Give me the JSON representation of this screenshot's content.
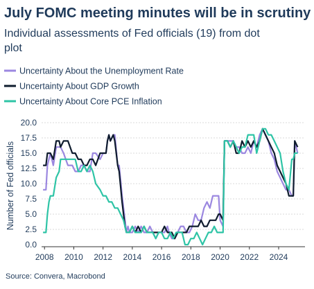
{
  "chart_data": {
    "type": "line",
    "title": "July FOMC meeting minutes will be in scrutiny",
    "subtitle_lines": [
      "Individual assessments of Fed officials (19) from dot",
      "plot"
    ],
    "xlabel": "",
    "ylabel": "Number of Fed officials",
    "source": "Source: Convera, Macrobond",
    "xlim": [
      2007.8,
      2025.8
    ],
    "ylim": [
      0,
      20
    ],
    "x_ticks": [
      2008,
      2010,
      2012,
      2014,
      2016,
      2018,
      2020,
      2022,
      2024
    ],
    "x_tick_labels": [
      "2008",
      "2010",
      "2012",
      "2014",
      "2016",
      "2018",
      "2020",
      "2022",
      "2024"
    ],
    "y_ticks": [
      0,
      2.5,
      5,
      7.5,
      10,
      12.5,
      15,
      17.5,
      20
    ],
    "y_tick_labels": [
      "0.0",
      "2.5",
      "5.0",
      "7.5",
      "10.0",
      "12.5",
      "15.0",
      "17.5",
      "20.0"
    ],
    "grid": true,
    "legend_position": "top-left",
    "series": [
      {
        "name": "Uncertainty About the Unemployment Rate",
        "color": "#9b87e0",
        "points": [
          [
            2007.9,
            9
          ],
          [
            2008.1,
            9
          ],
          [
            2008.2,
            13
          ],
          [
            2008.4,
            15
          ],
          [
            2008.6,
            13
          ],
          [
            2008.8,
            16
          ],
          [
            2009.0,
            16
          ],
          [
            2009.1,
            16
          ],
          [
            2009.3,
            15
          ],
          [
            2009.6,
            13
          ],
          [
            2009.9,
            13
          ],
          [
            2010.1,
            12
          ],
          [
            2010.3,
            12
          ],
          [
            2010.5,
            13
          ],
          [
            2010.7,
            13
          ],
          [
            2010.9,
            12
          ],
          [
            2011.1,
            12
          ],
          [
            2011.3,
            15
          ],
          [
            2011.5,
            15
          ],
          [
            2011.8,
            14
          ],
          [
            2012.0,
            15
          ],
          [
            2012.2,
            15
          ],
          [
            2012.3,
            17
          ],
          [
            2012.4,
            18
          ],
          [
            2012.5,
            17
          ],
          [
            2012.7,
            18
          ],
          [
            2012.8,
            18
          ],
          [
            2013.0,
            13
          ],
          [
            2013.1,
            13
          ],
          [
            2013.3,
            8
          ],
          [
            2013.4,
            6
          ],
          [
            2013.5,
            4
          ],
          [
            2013.6,
            2
          ],
          [
            2013.7,
            3
          ],
          [
            2013.8,
            2
          ],
          [
            2014.0,
            2
          ],
          [
            2014.2,
            3
          ],
          [
            2014.4,
            2
          ],
          [
            2014.6,
            3
          ],
          [
            2014.8,
            2
          ],
          [
            2015.0,
            2
          ],
          [
            2015.2,
            3
          ],
          [
            2015.4,
            2
          ],
          [
            2015.6,
            1
          ],
          [
            2015.8,
            2
          ],
          [
            2016.0,
            2
          ],
          [
            2016.2,
            2
          ],
          [
            2016.4,
            3
          ],
          [
            2016.5,
            2
          ],
          [
            2016.7,
            1
          ],
          [
            2016.9,
            1
          ],
          [
            2017.1,
            2
          ],
          [
            2017.3,
            3
          ],
          [
            2017.5,
            3
          ],
          [
            2017.7,
            2
          ],
          [
            2017.9,
            2
          ],
          [
            2018.1,
            3
          ],
          [
            2018.3,
            5
          ],
          [
            2018.5,
            4
          ],
          [
            2018.7,
            4
          ],
          [
            2018.9,
            6
          ],
          [
            2019.1,
            7
          ],
          [
            2019.3,
            6
          ],
          [
            2019.5,
            8
          ],
          [
            2019.7,
            8
          ],
          [
            2019.9,
            8
          ],
          [
            2020.0,
            4
          ],
          [
            2020.2,
            3
          ],
          [
            2020.3,
            17
          ],
          [
            2020.5,
            17
          ],
          [
            2020.7,
            17
          ],
          [
            2020.9,
            17
          ],
          [
            2021.1,
            16
          ],
          [
            2021.3,
            16
          ],
          [
            2021.5,
            15
          ],
          [
            2021.7,
            15
          ],
          [
            2021.9,
            16
          ],
          [
            2022.1,
            15
          ],
          [
            2022.3,
            17
          ],
          [
            2022.5,
            16
          ],
          [
            2022.7,
            18
          ],
          [
            2022.9,
            19
          ],
          [
            2023.1,
            18
          ],
          [
            2023.3,
            17
          ],
          [
            2023.5,
            15
          ],
          [
            2023.7,
            14
          ],
          [
            2023.9,
            12
          ],
          [
            2024.1,
            11
          ],
          [
            2024.3,
            10
          ],
          [
            2024.5,
            9
          ],
          [
            2024.7,
            9
          ],
          [
            2024.9,
            8
          ],
          [
            2025.0,
            8
          ],
          [
            2025.1,
            17
          ],
          [
            2025.3,
            15
          ]
        ]
      },
      {
        "name": "Uncertainty About GDP Growth",
        "color": "#0f1c2e",
        "points": [
          [
            2007.9,
            13
          ],
          [
            2008.1,
            13
          ],
          [
            2008.2,
            15
          ],
          [
            2008.4,
            15
          ],
          [
            2008.6,
            14
          ],
          [
            2008.8,
            17
          ],
          [
            2009.0,
            17
          ],
          [
            2009.1,
            16
          ],
          [
            2009.3,
            17
          ],
          [
            2009.6,
            17
          ],
          [
            2009.9,
            15
          ],
          [
            2010.1,
            15
          ],
          [
            2010.3,
            14
          ],
          [
            2010.5,
            14
          ],
          [
            2010.7,
            13
          ],
          [
            2010.9,
            13
          ],
          [
            2011.1,
            14
          ],
          [
            2011.3,
            14
          ],
          [
            2011.5,
            13
          ],
          [
            2011.8,
            15
          ],
          [
            2012.0,
            15
          ],
          [
            2012.2,
            15
          ],
          [
            2012.3,
            17
          ],
          [
            2012.4,
            18
          ],
          [
            2012.5,
            17
          ],
          [
            2012.7,
            18
          ],
          [
            2012.8,
            17
          ],
          [
            2013.0,
            13
          ],
          [
            2013.1,
            12
          ],
          [
            2013.3,
            7
          ],
          [
            2013.4,
            5
          ],
          [
            2013.5,
            3
          ],
          [
            2013.6,
            2
          ],
          [
            2013.7,
            2
          ],
          [
            2013.8,
            2
          ],
          [
            2014.0,
            3
          ],
          [
            2014.2,
            2
          ],
          [
            2014.4,
            3
          ],
          [
            2014.6,
            2
          ],
          [
            2014.8,
            3
          ],
          [
            2015.0,
            2
          ],
          [
            2015.2,
            2
          ],
          [
            2015.4,
            2
          ],
          [
            2015.6,
            2
          ],
          [
            2015.8,
            2
          ],
          [
            2016.0,
            2
          ],
          [
            2016.2,
            3
          ],
          [
            2016.4,
            2
          ],
          [
            2016.5,
            2
          ],
          [
            2016.7,
            2
          ],
          [
            2016.9,
            1
          ],
          [
            2017.1,
            2
          ],
          [
            2017.3,
            2
          ],
          [
            2017.5,
            2
          ],
          [
            2017.7,
            2
          ],
          [
            2017.9,
            3
          ],
          [
            2018.1,
            3
          ],
          [
            2018.3,
            3
          ],
          [
            2018.5,
            3
          ],
          [
            2018.7,
            4
          ],
          [
            2018.9,
            3
          ],
          [
            2019.1,
            3
          ],
          [
            2019.3,
            4
          ],
          [
            2019.5,
            4
          ],
          [
            2019.7,
            4
          ],
          [
            2019.9,
            5
          ],
          [
            2020.0,
            5
          ],
          [
            2020.2,
            4
          ],
          [
            2020.3,
            17
          ],
          [
            2020.5,
            17
          ],
          [
            2020.7,
            16
          ],
          [
            2020.9,
            17
          ],
          [
            2021.1,
            15
          ],
          [
            2021.3,
            15
          ],
          [
            2021.5,
            17
          ],
          [
            2021.7,
            16
          ],
          [
            2021.9,
            17
          ],
          [
            2022.1,
            16
          ],
          [
            2022.3,
            17
          ],
          [
            2022.5,
            16
          ],
          [
            2022.7,
            17
          ],
          [
            2022.9,
            19
          ],
          [
            2023.1,
            18
          ],
          [
            2023.3,
            17
          ],
          [
            2023.5,
            16
          ],
          [
            2023.7,
            15
          ],
          [
            2023.9,
            13
          ],
          [
            2024.1,
            12
          ],
          [
            2024.3,
            11
          ],
          [
            2024.5,
            10
          ],
          [
            2024.7,
            8
          ],
          [
            2024.9,
            8
          ],
          [
            2025.0,
            8
          ],
          [
            2025.1,
            17
          ],
          [
            2025.3,
            16
          ]
        ]
      },
      {
        "name": "Uncertainty About Core PCE Inflation",
        "color": "#2ec4a6",
        "points": [
          [
            2007.9,
            2
          ],
          [
            2008.1,
            2
          ],
          [
            2008.2,
            5
          ],
          [
            2008.3,
            7
          ],
          [
            2008.4,
            8
          ],
          [
            2008.6,
            8
          ],
          [
            2008.8,
            11
          ],
          [
            2009.0,
            12
          ],
          [
            2009.1,
            14
          ],
          [
            2009.3,
            14
          ],
          [
            2009.6,
            14
          ],
          [
            2009.9,
            14
          ],
          [
            2010.1,
            14
          ],
          [
            2010.3,
            12
          ],
          [
            2010.5,
            12
          ],
          [
            2010.7,
            13
          ],
          [
            2010.9,
            12
          ],
          [
            2011.1,
            13
          ],
          [
            2011.3,
            12
          ],
          [
            2011.5,
            10
          ],
          [
            2011.8,
            9
          ],
          [
            2012.0,
            8
          ],
          [
            2012.2,
            8
          ],
          [
            2012.4,
            7
          ],
          [
            2012.6,
            7
          ],
          [
            2012.8,
            6
          ],
          [
            2013.0,
            6
          ],
          [
            2013.2,
            5
          ],
          [
            2013.4,
            4
          ],
          [
            2013.6,
            2
          ],
          [
            2013.8,
            2
          ],
          [
            2014.0,
            3
          ],
          [
            2014.2,
            2
          ],
          [
            2014.4,
            2
          ],
          [
            2014.6,
            2
          ],
          [
            2014.8,
            3
          ],
          [
            2015.0,
            2
          ],
          [
            2015.2,
            2
          ],
          [
            2015.4,
            2
          ],
          [
            2015.6,
            1
          ],
          [
            2015.8,
            2
          ],
          [
            2016.0,
            2
          ],
          [
            2016.2,
            1
          ],
          [
            2016.4,
            1
          ],
          [
            2016.6,
            2
          ],
          [
            2016.8,
            1
          ],
          [
            2017.0,
            2
          ],
          [
            2017.2,
            2
          ],
          [
            2017.4,
            2
          ],
          [
            2017.6,
            0
          ],
          [
            2017.8,
            0
          ],
          [
            2018.0,
            1
          ],
          [
            2018.2,
            1
          ],
          [
            2018.4,
            2
          ],
          [
            2018.6,
            1
          ],
          [
            2018.8,
            0
          ],
          [
            2019.0,
            1
          ],
          [
            2019.2,
            2
          ],
          [
            2019.4,
            2
          ],
          [
            2019.6,
            3
          ],
          [
            2019.8,
            2
          ],
          [
            2020.0,
            2
          ],
          [
            2020.2,
            2
          ],
          [
            2020.3,
            17
          ],
          [
            2020.5,
            17
          ],
          [
            2020.7,
            16
          ],
          [
            2020.9,
            17
          ],
          [
            2021.1,
            16
          ],
          [
            2021.3,
            15
          ],
          [
            2021.5,
            16
          ],
          [
            2021.7,
            16
          ],
          [
            2021.9,
            18
          ],
          [
            2022.1,
            18
          ],
          [
            2022.3,
            18
          ],
          [
            2022.5,
            15
          ],
          [
            2022.7,
            17
          ],
          [
            2022.9,
            19
          ],
          [
            2023.1,
            19
          ],
          [
            2023.3,
            18
          ],
          [
            2023.5,
            18
          ],
          [
            2023.7,
            17
          ],
          [
            2023.9,
            16
          ],
          [
            2024.1,
            15
          ],
          [
            2024.3,
            12
          ],
          [
            2024.5,
            10
          ],
          [
            2024.7,
            9
          ],
          [
            2024.9,
            14
          ],
          [
            2025.0,
            14
          ],
          [
            2025.1,
            15
          ],
          [
            2025.3,
            15
          ]
        ]
      }
    ]
  }
}
